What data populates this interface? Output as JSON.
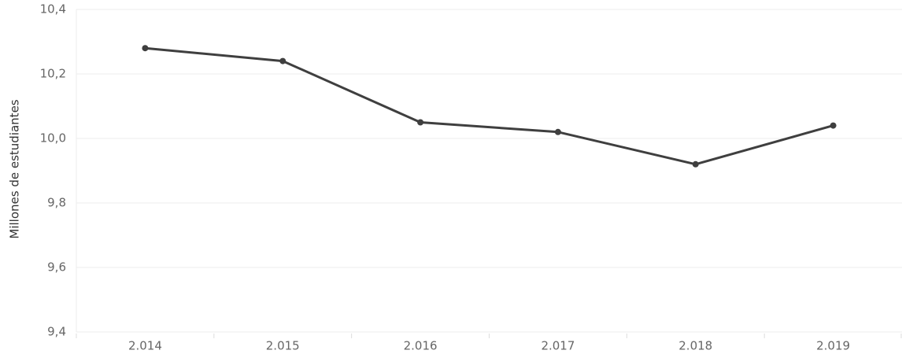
{
  "chart_data": {
    "type": "line",
    "y_label": "Millones de estudiantes",
    "categories": [
      "2.014",
      "2.015",
      "2.016",
      "2.017",
      "2.018",
      "2.019"
    ],
    "values": [
      10.28,
      10.24,
      10.05,
      10.02,
      9.92,
      10.04
    ],
    "color": "#3f3f3f",
    "ylim": [
      9.4,
      10.4
    ],
    "yticks": [
      {
        "value": 9.4,
        "label": "9,4"
      },
      {
        "value": 9.6,
        "label": "9,6"
      },
      {
        "value": 9.8,
        "label": "9,8"
      },
      {
        "value": 10.0,
        "label": "10,0"
      },
      {
        "value": 10.2,
        "label": "10,2"
      },
      {
        "value": 10.4,
        "label": "10,4"
      }
    ],
    "grid": true
  }
}
